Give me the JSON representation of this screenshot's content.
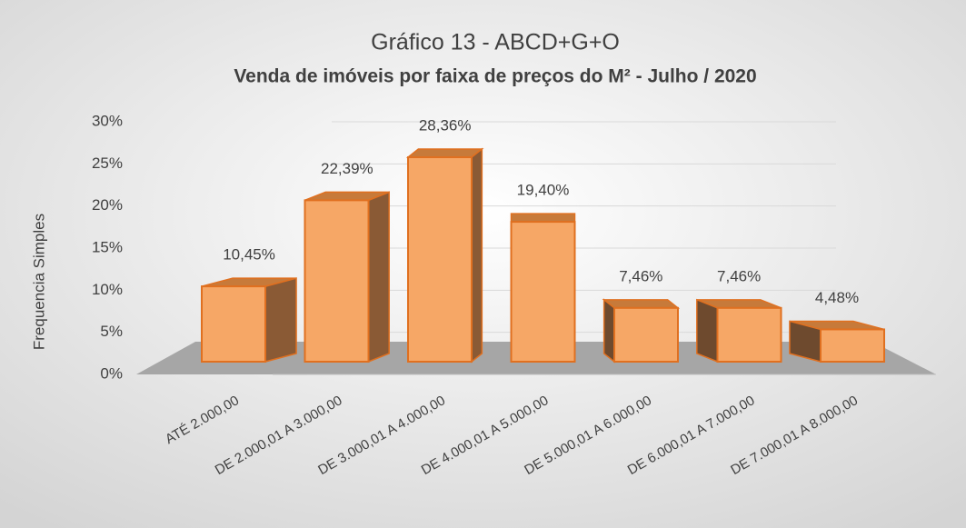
{
  "chart_data": {
    "type": "bar",
    "title": "Gráfico 13 - ABCD+G+O",
    "subtitle": "Venda de imóveis por faixa de preços do M² - Julho / 2020",
    "y_label": "Frequencia Simples",
    "categories": [
      "ATÉ 2.000,00",
      "DE 2.000,01 A 3.000,00",
      "DE 3.000,01 A 4.000,00",
      "DE 4.000,01 A 5.000,00",
      "DE 5.000,01 A 6.000,00",
      "DE 6.000,01 A 7.000,00",
      "DE 7.000,01 A 8.000,00"
    ],
    "values": [
      10.45,
      22.39,
      28.36,
      19.4,
      7.46,
      7.46,
      4.48
    ],
    "value_labels": [
      "10,45%",
      "22,39%",
      "28,36%",
      "19,40%",
      "7,46%",
      "7,46%",
      "4,48%"
    ],
    "color": "#f6a766",
    "ylim": [
      0,
      30
    ],
    "yticks": [
      {
        "value": 0,
        "label": "0%"
      },
      {
        "value": 5,
        "label": "5%"
      },
      {
        "value": 10,
        "label": "10%"
      },
      {
        "value": 15,
        "label": "15%"
      },
      {
        "value": 20,
        "label": "20%"
      },
      {
        "value": 25,
        "label": "25%"
      },
      {
        "value": 30,
        "label": "30%"
      }
    ],
    "grid": true
  }
}
